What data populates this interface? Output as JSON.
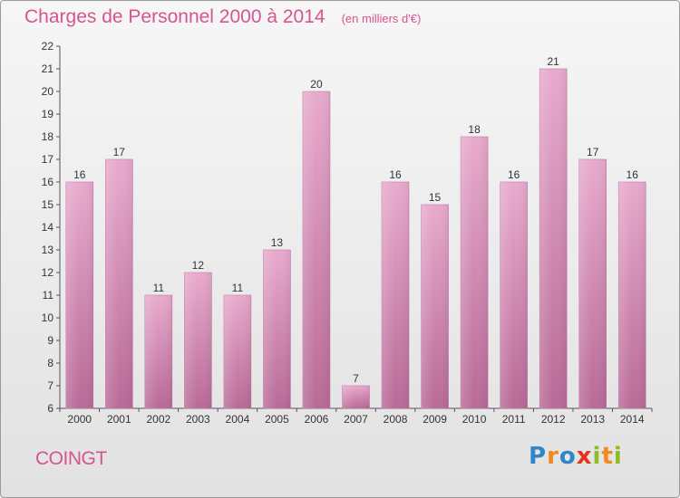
{
  "header": {
    "title": "Charges de Personnel 2000 à 2014",
    "unit": "(en milliers d'€)"
  },
  "footer": {
    "commune": "COINGT",
    "brand_letters": [
      {
        "ch": "P",
        "color": "#2f86c8"
      },
      {
        "ch": "r",
        "color": "#f08a1c"
      },
      {
        "ch": "o",
        "color": "#2f86c8"
      },
      {
        "ch": "x",
        "color": "#e8331c"
      },
      {
        "ch": "i",
        "color": "#8cbf26"
      },
      {
        "ch": "t",
        "color": "#f08a1c"
      },
      {
        "ch": "i",
        "color": "#8cbf26"
      }
    ]
  },
  "chart_data": {
    "type": "bar",
    "title": "Charges de Personnel 2000 à 2014",
    "subtitle": "(en milliers d'€)",
    "categories": [
      "2000",
      "2001",
      "2002",
      "2003",
      "2004",
      "2005",
      "2006",
      "2007",
      "2008",
      "2009",
      "2010",
      "2011",
      "2012",
      "2013",
      "2014"
    ],
    "values": [
      16,
      17,
      11,
      12,
      11,
      13,
      20,
      7,
      16,
      15,
      18,
      16,
      21,
      17,
      16
    ],
    "ylim": [
      6,
      22
    ],
    "yticks": [
      6,
      7,
      8,
      9,
      10,
      11,
      12,
      13,
      14,
      15,
      16,
      17,
      18,
      19,
      20,
      21,
      22
    ],
    "grid": false,
    "bar_color": "#d98cb6",
    "data_labels": true
  }
}
